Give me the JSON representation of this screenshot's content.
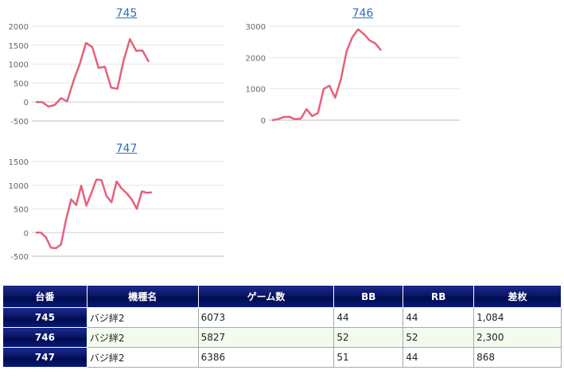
{
  "chart_data": [
    {
      "type": "line",
      "title": "745",
      "color": "#e8607a",
      "yticks": [
        2000,
        1500,
        1000,
        500,
        0,
        -500
      ],
      "ylim": [
        -500,
        2000
      ],
      "values": [
        0,
        0,
        -120,
        -80,
        100,
        20,
        550,
        1000,
        1560,
        1450,
        900,
        930,
        380,
        350,
        1100,
        1660,
        1350,
        1360,
        1060
      ]
    },
    {
      "type": "line",
      "title": "746",
      "color": "#e8607a",
      "yticks": [
        3000,
        2000,
        1000,
        0
      ],
      "ylim": [
        0,
        3000
      ],
      "values": [
        0,
        30,
        100,
        110,
        30,
        50,
        350,
        130,
        230,
        1000,
        1100,
        720,
        1300,
        2200,
        2650,
        2900,
        2750,
        2550,
        2450,
        2230
      ]
    },
    {
      "type": "line",
      "title": "747",
      "color": "#e8607a",
      "yticks": [
        1500,
        1000,
        500,
        0,
        -500
      ],
      "ylim": [
        -500,
        1500
      ],
      "values": [
        0,
        0,
        -100,
        -320,
        -330,
        -250,
        280,
        700,
        580,
        990,
        570,
        830,
        1120,
        1110,
        770,
        640,
        1080,
        930,
        830,
        700,
        500,
        870,
        840,
        850
      ]
    }
  ],
  "table": {
    "headers": [
      "台番",
      "機種名",
      "ゲーム数",
      "BB",
      "RB",
      "差枚"
    ],
    "rows": [
      {
        "id": "745",
        "machine": "バジ絆2",
        "games": "6073",
        "bb": "44",
        "rb": "44",
        "diff": "1,084"
      },
      {
        "id": "746",
        "machine": "バジ絆2",
        "games": "5827",
        "bb": "52",
        "rb": "52",
        "diff": "2,300"
      },
      {
        "id": "747",
        "machine": "バジ絆2",
        "games": "6386",
        "bb": "51",
        "rb": "44",
        "diff": "868"
      }
    ]
  }
}
